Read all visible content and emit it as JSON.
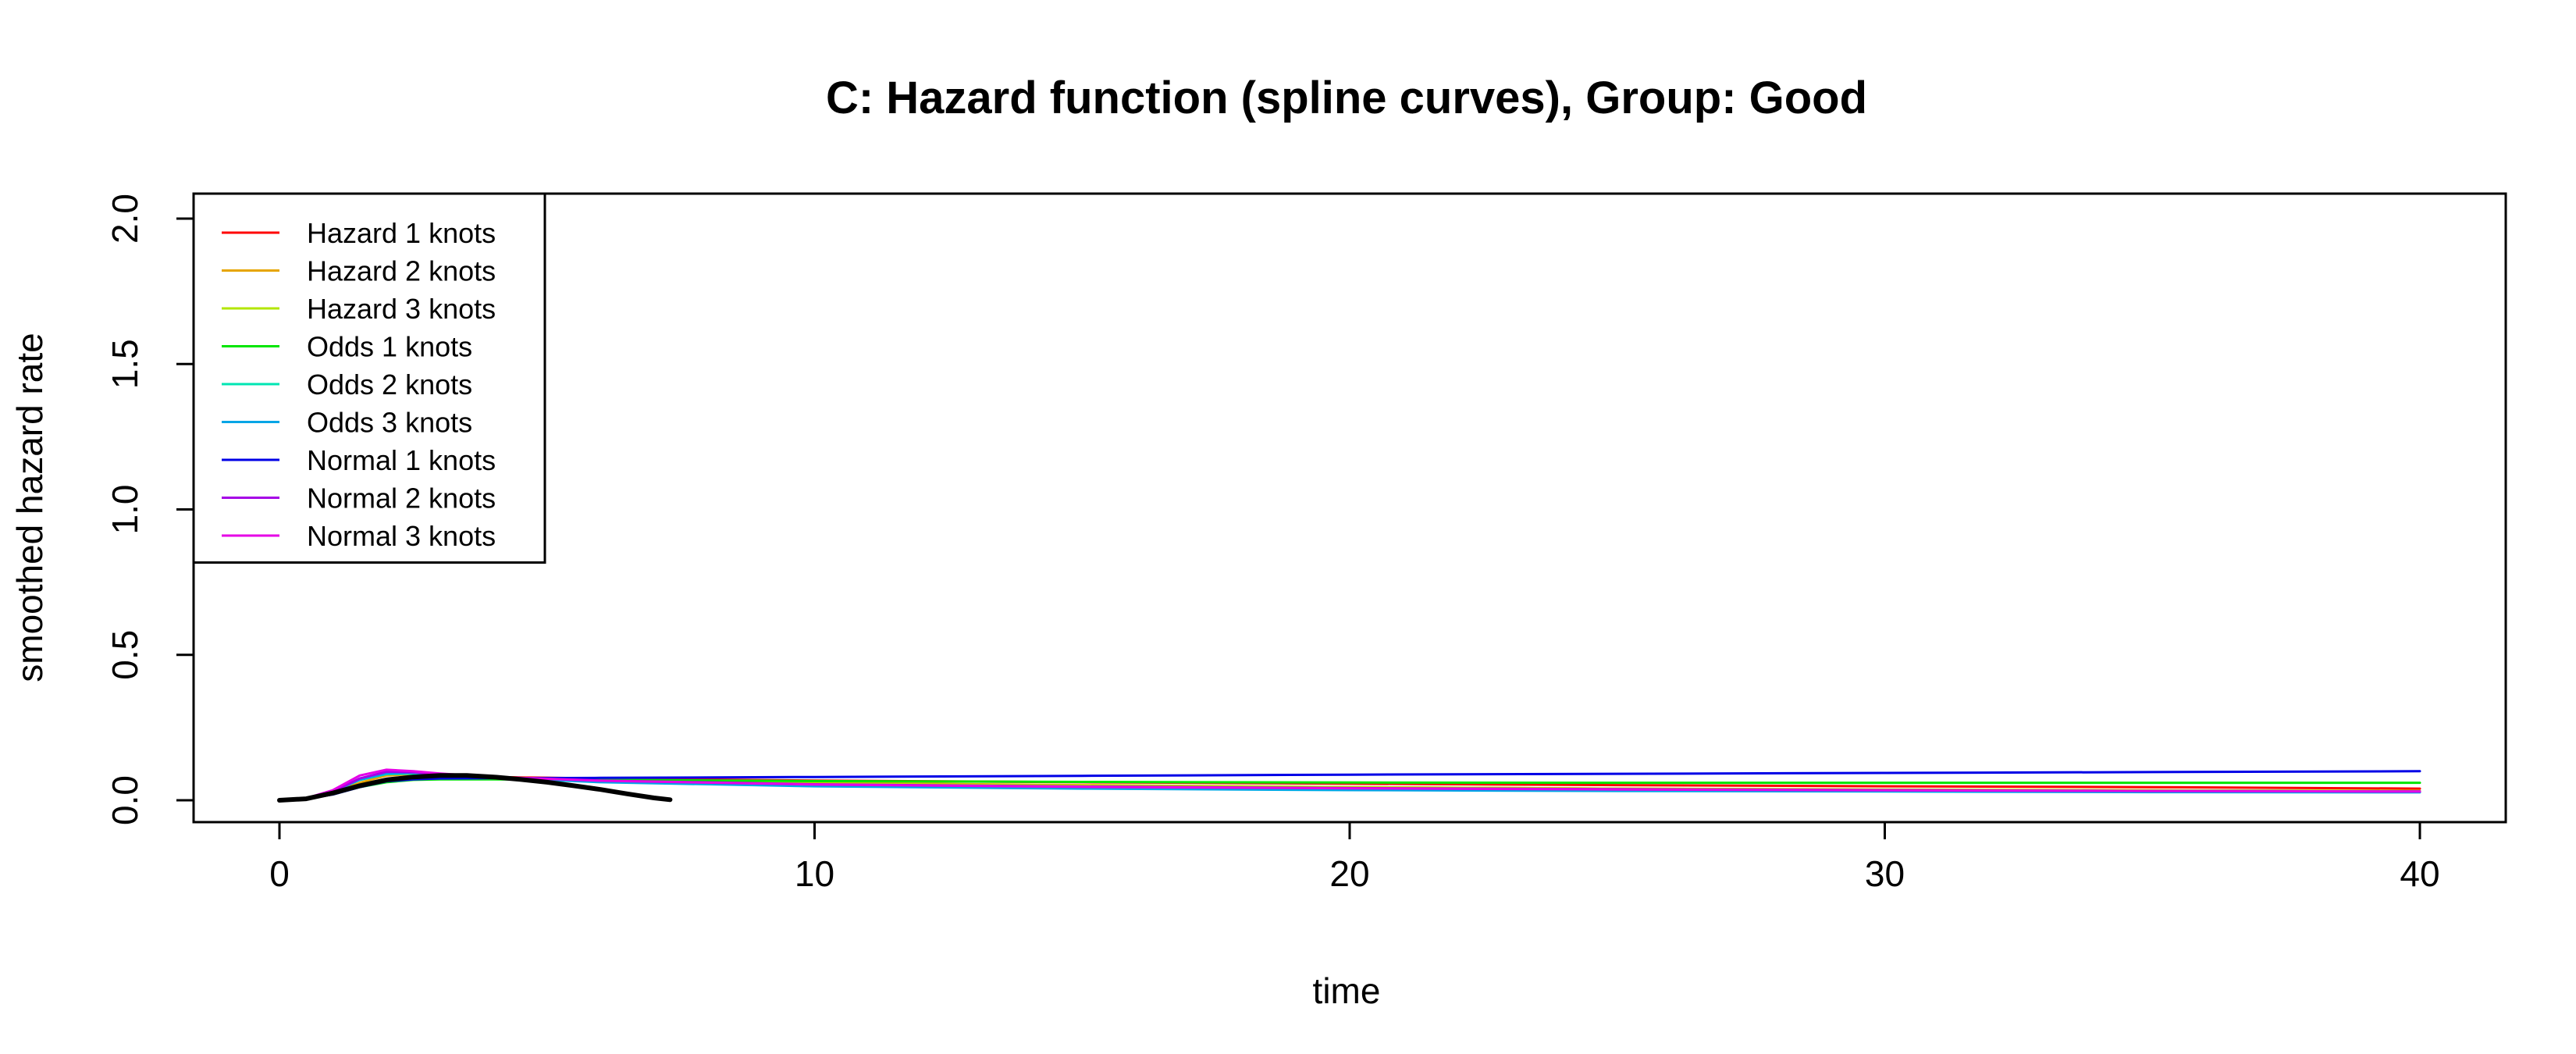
{
  "chart_data": {
    "type": "line",
    "title": "C: Hazard function (spline curves), Group: Good",
    "xlabel": "time",
    "ylabel": "smoothed hazard rate",
    "xlim": [
      0,
      40
    ],
    "ylim": [
      0,
      2
    ],
    "x_ticks": [
      0,
      10,
      20,
      30,
      40
    ],
    "y_ticks": [
      0.0,
      0.5,
      1.0,
      1.5,
      2.0
    ],
    "y_tick_labels": [
      "0.0",
      "0.5",
      "1.0",
      "1.5",
      "2.0"
    ],
    "grid": false,
    "legend": {
      "position": "top-left"
    },
    "series": [
      {
        "name": "Hazard 1 knots",
        "color": "#FF0000",
        "x": [
          0,
          0.5,
          1,
          1.5,
          2,
          2.5,
          3,
          4,
          6,
          10,
          15,
          20,
          25,
          30,
          35,
          40
        ],
        "y": [
          0,
          0.005,
          0.02,
          0.045,
          0.065,
          0.075,
          0.08,
          0.08,
          0.075,
          0.068,
          0.062,
          0.057,
          0.052,
          0.048,
          0.045,
          0.04
        ]
      },
      {
        "name": "Hazard 2 knots",
        "color": "#E6A500",
        "x": [
          0,
          0.5,
          1,
          1.5,
          2,
          2.5,
          3,
          4,
          6,
          10,
          15,
          20,
          25,
          30,
          35,
          40
        ],
        "y": [
          0,
          0.005,
          0.025,
          0.06,
          0.085,
          0.09,
          0.088,
          0.08,
          0.07,
          0.06,
          0.052,
          0.045,
          0.04,
          0.036,
          0.033,
          0.03
        ]
      },
      {
        "name": "Hazard 3 knots",
        "color": "#B3E600",
        "x": [
          0,
          0.5,
          1,
          1.5,
          2,
          2.5,
          3,
          4,
          6,
          10,
          15,
          20,
          25,
          30,
          35,
          40
        ],
        "y": [
          0,
          0.006,
          0.03,
          0.07,
          0.095,
          0.095,
          0.09,
          0.08,
          0.068,
          0.057,
          0.05,
          0.045,
          0.04,
          0.037,
          0.034,
          0.032
        ]
      },
      {
        "name": "Odds 1 knots",
        "color": "#00E600",
        "x": [
          0,
          0.5,
          1,
          1.5,
          2,
          2.5,
          3,
          4,
          6,
          10,
          15,
          20,
          25,
          30,
          35,
          40
        ],
        "y": [
          0,
          0.005,
          0.02,
          0.045,
          0.062,
          0.07,
          0.072,
          0.072,
          0.07,
          0.066,
          0.063,
          0.061,
          0.06,
          0.06,
          0.06,
          0.06
        ]
      },
      {
        "name": "Odds 2 knots",
        "color": "#00E6B3",
        "x": [
          0,
          0.5,
          1,
          1.5,
          2,
          2.5,
          3,
          4,
          6,
          10,
          15,
          20,
          25,
          30,
          35,
          40
        ],
        "y": [
          0,
          0.006,
          0.03,
          0.07,
          0.09,
          0.092,
          0.088,
          0.078,
          0.065,
          0.052,
          0.045,
          0.04,
          0.036,
          0.034,
          0.032,
          0.03
        ]
      },
      {
        "name": "Odds 3 knots",
        "color": "#00A5E6",
        "x": [
          0,
          0.5,
          1,
          1.5,
          2,
          2.5,
          3,
          4,
          6,
          10,
          15,
          20,
          25,
          30,
          35,
          40
        ],
        "y": [
          0,
          0.006,
          0.03,
          0.07,
          0.092,
          0.095,
          0.09,
          0.078,
          0.062,
          0.048,
          0.04,
          0.035,
          0.032,
          0.03,
          0.028,
          0.027
        ]
      },
      {
        "name": "Normal 1 knots",
        "color": "#0000E6",
        "x": [
          0,
          0.5,
          1,
          1.5,
          2,
          2.5,
          3,
          4,
          6,
          10,
          15,
          20,
          25,
          30,
          35,
          40
        ],
        "y": [
          0,
          0.005,
          0.02,
          0.045,
          0.065,
          0.072,
          0.075,
          0.076,
          0.077,
          0.08,
          0.084,
          0.088,
          0.091,
          0.094,
          0.097,
          0.1
        ]
      },
      {
        "name": "Normal 2 knots",
        "color": "#A500E6",
        "x": [
          0,
          0.5,
          1,
          1.5,
          2,
          2.5,
          3,
          4,
          6,
          10,
          15,
          20,
          25,
          30,
          35,
          40
        ],
        "y": [
          0,
          0.006,
          0.03,
          0.075,
          0.098,
          0.096,
          0.09,
          0.08,
          0.068,
          0.055,
          0.047,
          0.042,
          0.038,
          0.035,
          0.032,
          0.03
        ]
      },
      {
        "name": "Normal 3 knots",
        "color": "#E600E6",
        "x": [
          0,
          0.5,
          1,
          1.5,
          2,
          2.5,
          3,
          4,
          6,
          10,
          15,
          20,
          25,
          30,
          35,
          40
        ],
        "y": [
          0,
          0.007,
          0.035,
          0.085,
          0.105,
          0.1,
          0.092,
          0.08,
          0.067,
          0.054,
          0.046,
          0.041,
          0.037,
          0.034,
          0.032,
          0.03
        ]
      },
      {
        "name": "",
        "color": "#000000",
        "legend": false,
        "width": "thick",
        "x": [
          0,
          0.5,
          1,
          1.5,
          2,
          2.5,
          3,
          3.5,
          4,
          4.5,
          5,
          5.5,
          6,
          6.5,
          7,
          7.3
        ],
        "y": [
          0,
          0.005,
          0.025,
          0.05,
          0.07,
          0.08,
          0.085,
          0.085,
          0.08,
          0.072,
          0.062,
          0.05,
          0.037,
          0.022,
          0.008,
          0.002
        ]
      }
    ]
  }
}
